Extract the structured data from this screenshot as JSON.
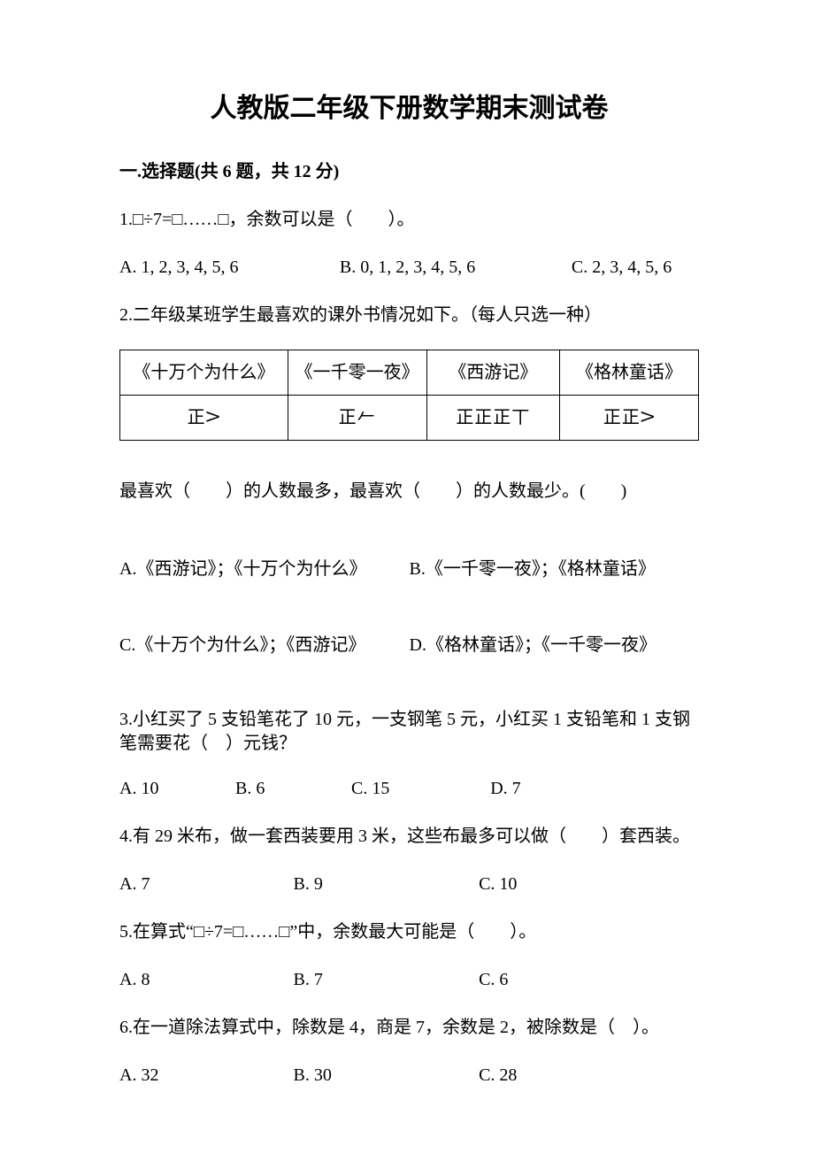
{
  "title": "人教版二年级下册数学期末测试卷",
  "section1": {
    "heading": "一.选择题(共 6 题，共 12 分)"
  },
  "q1": {
    "stem": "1.□÷7=□……□，余数可以是（　　）。",
    "A": "A. 1, 2, 3, 4, 5, 6",
    "B": "B. 0, 1, 2, 3, 4, 5, 6",
    "C": "C. 2, 3, 4, 5, 6"
  },
  "q2": {
    "stem": "2.二年级某班学生最喜欢的课外书情况如下。（每人只选一种）",
    "table": {
      "headers": [
        "《十万个为什么》",
        "《一千零一夜》",
        "《西游记》",
        "《格林童话》"
      ],
      "tallies": [
        "正𝈷",
        "正𠂉",
        "正正正丅",
        "正正𝈷"
      ]
    },
    "sub": "最喜欢（　　）的人数最多，最喜欢（　　）的人数最少。(　　)",
    "A": "A.《西游记》；《十万个为什么》",
    "B": "B.《一千零一夜》；《格林童话》",
    "C": "C.《十万个为什么》；《西游记》",
    "D": "D.《格林童话》；《一千零一夜》"
  },
  "q3": {
    "stem": "3.小红买了 5 支铅笔花了 10 元，一支钢笔 5 元，小红买 1 支铅笔和 1 支钢笔需要花（　）元钱？",
    "A": "A. 10",
    "B": "B. 6",
    "C": "C. 15",
    "D": "D. 7"
  },
  "q4": {
    "stem": "4.有 29 米布，做一套西装要用 3 米，这些布最多可以做（　　）套西装。",
    "A": "A. 7",
    "B": "B. 9",
    "C": "C. 10"
  },
  "q5": {
    "stem": "5.在算式“□÷7=□……□”中，余数最大可能是（　　）。",
    "A": "A. 8",
    "B": "B. 7",
    "C": "C. 6"
  },
  "q6": {
    "stem": "6.在一道除法算式中，除数是 4，商是 7，余数是 2，被除数是（　）。",
    "A": "A. 32",
    "B": "B. 30",
    "C": "C. 28"
  }
}
